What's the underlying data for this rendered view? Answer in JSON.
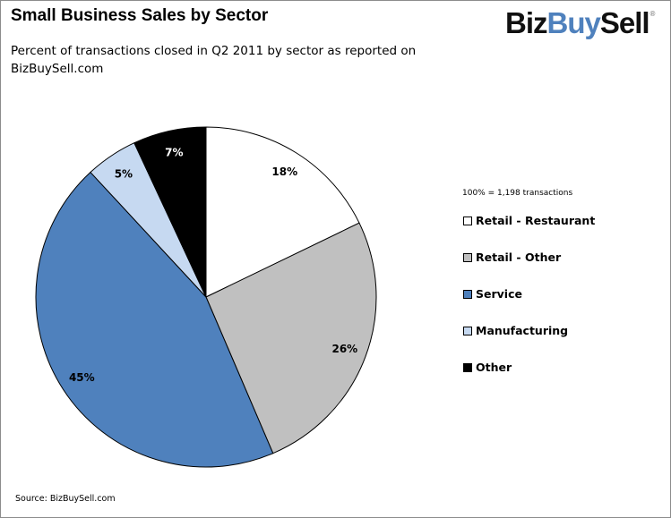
{
  "chart_data": {
    "type": "pie",
    "title": "Small Business Sales by Sector",
    "subtitle": "Percent of transactions closed in Q2 2011 by sector as reported on BizBuySell.com",
    "note": "100% = 1,198 transactions",
    "source": "Source: BizBuySell.com",
    "start_angle": "top, clockwise",
    "legend_position": "right",
    "slices": [
      {
        "name": "Retail - Restaurant",
        "value": 18,
        "label": "18%",
        "color": "#ffffff"
      },
      {
        "name": "Retail - Other",
        "value": 26,
        "label": "26%",
        "color": "#c0c0c0"
      },
      {
        "name": "Service",
        "value": 45,
        "label": "45%",
        "color": "#4f81bd"
      },
      {
        "name": "Manufacturing",
        "value": 5,
        "label": "5%",
        "color": "#c6d9f1"
      },
      {
        "name": "Other",
        "value": 7,
        "label": "7%",
        "color": "#000000"
      }
    ]
  },
  "logo": {
    "part1": "Biz",
    "part2": "Buy",
    "part3": "Sell",
    "mark": "®"
  }
}
